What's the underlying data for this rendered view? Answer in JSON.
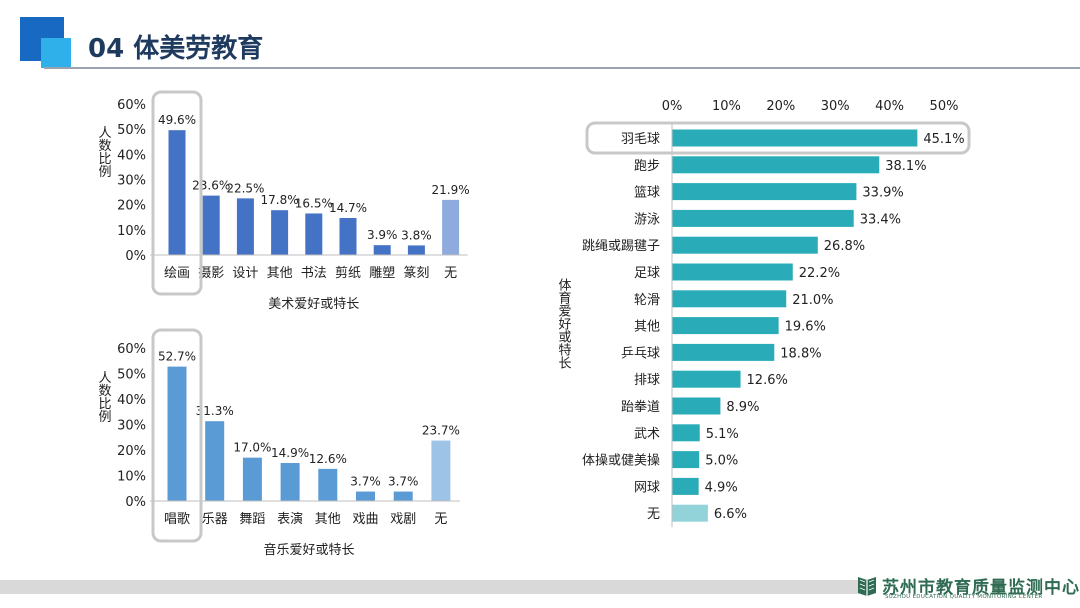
{
  "header": {
    "title": "04  体美劳教育"
  },
  "footer": {
    "org_name": "苏州市教育质量监测中心",
    "org_name_en": "SUZHOU EDUCATION QUALITY MONITORING CENTER"
  },
  "colors": {
    "accent_dark": "#1769c2",
    "accent_light": "#2fb0ea",
    "art_bar": "#4472c4",
    "art_bar_last": "#8faadc",
    "music_bar": "#5b9bd5",
    "music_bar_last": "#9dc3e6",
    "sport_bar": "#2aacb8",
    "sport_bar_last": "#92d3d9"
  },
  "chart_data": [
    {
      "type": "bar",
      "categories": [
        "绘画",
        "摄影",
        "设计",
        "其他",
        "书法",
        "剪纸",
        "雕塑",
        "篆刻",
        "无"
      ],
      "values": [
        49.6,
        23.6,
        22.5,
        17.8,
        16.5,
        14.7,
        3.9,
        3.8,
        21.9
      ],
      "value_labels": [
        "49.6%",
        "23.6%",
        "22.5%",
        "17.8%",
        "16.5%",
        "14.7%",
        "3.9%",
        "3.8%",
        "21.9%"
      ],
      "xlabel": "美术爱好或特长",
      "ylabel": "人数比例",
      "ylim": [
        0,
        60
      ],
      "y_ticks": [
        "0%",
        "10%",
        "20%",
        "30%",
        "40%",
        "50%",
        "60%"
      ],
      "highlight": "绘画",
      "grid": false
    },
    {
      "type": "bar",
      "categories": [
        "唱歌",
        "乐器",
        "舞蹈",
        "表演",
        "其他",
        "戏曲",
        "戏剧",
        "无"
      ],
      "values": [
        52.7,
        31.3,
        17.0,
        14.9,
        12.6,
        3.7,
        3.7,
        23.7
      ],
      "value_labels": [
        "52.7%",
        "31.3%",
        "17.0%",
        "14.9%",
        "12.6%",
        "3.7%",
        "3.7%",
        "23.7%"
      ],
      "xlabel": "音乐爱好或特长",
      "ylabel": "人数比例",
      "ylim": [
        0,
        60
      ],
      "y_ticks": [
        "0%",
        "10%",
        "20%",
        "30%",
        "40%",
        "50%",
        "60%"
      ],
      "highlight": "唱歌",
      "grid": false
    },
    {
      "type": "bar",
      "orientation": "horizontal",
      "categories": [
        "羽毛球",
        "跑步",
        "篮球",
        "游泳",
        "跳绳或踢毽子",
        "足球",
        "轮滑",
        "其他",
        "乒乓球",
        "排球",
        "跆拳道",
        "武术",
        "体操或健美操",
        "网球",
        "无"
      ],
      "values": [
        45.1,
        38.1,
        33.9,
        33.4,
        26.8,
        22.2,
        21.0,
        19.6,
        18.8,
        12.6,
        8.9,
        5.1,
        5.0,
        4.9,
        6.6
      ],
      "value_labels": [
        "45.1%",
        "38.1%",
        "33.9%",
        "33.4%",
        "26.8%",
        "22.2%",
        "21.0%",
        "19.6%",
        "18.8%",
        "12.6%",
        "8.9%",
        "5.1%",
        "5.0%",
        "4.9%",
        "6.6%"
      ],
      "ylabel": "体育爱好或特长",
      "xlim": [
        0,
        50
      ],
      "x_ticks": [
        "0%",
        "10%",
        "20%",
        "30%",
        "40%",
        "50%"
      ],
      "axis_position": "top",
      "highlight": "羽毛球",
      "grid": false
    }
  ]
}
